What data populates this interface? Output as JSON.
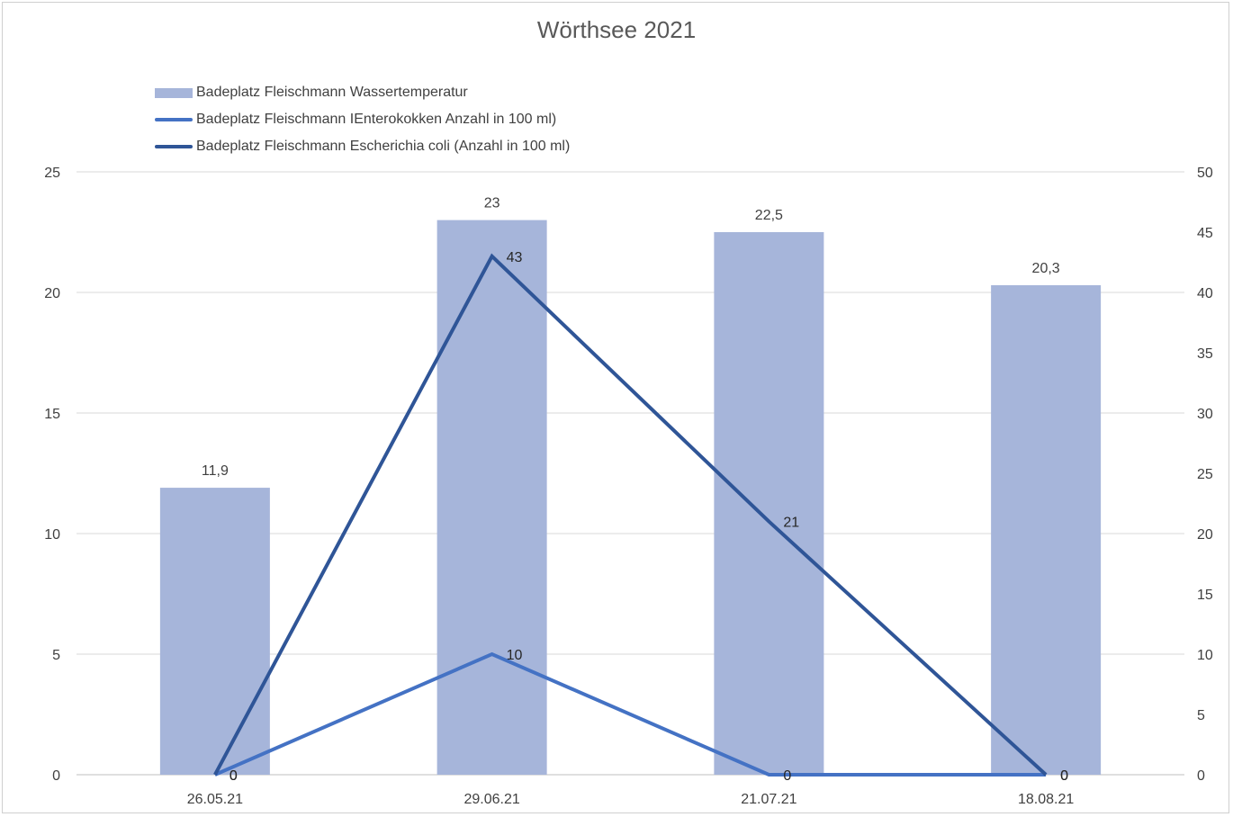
{
  "chart_data": {
    "type": "bar",
    "title": "Wörthsee 2021",
    "categories": [
      "26.05.21",
      "29.06.21",
      "21.07.21",
      "18.08.21"
    ],
    "series": [
      {
        "name": "Badeplatz Fleischmann Wassertemperatur",
        "kind": "bar",
        "axis": "left",
        "values": [
          11.9,
          23,
          22.5,
          20.3
        ],
        "labels": [
          "11,9",
          "23",
          "22,5",
          "20,3"
        ],
        "color": "#a6b5da"
      },
      {
        "name": "Badeplatz Fleischmann IEnterokokken Anzahl in 100 ml)",
        "kind": "line",
        "axis": "right",
        "values": [
          0,
          10,
          0,
          0
        ],
        "labels": [
          "0",
          "10",
          "0",
          "0"
        ],
        "color": "#4472c4"
      },
      {
        "name": "Badeplatz Fleischmann Escherichia coli  (Anzahl in 100 ml)",
        "kind": "line",
        "axis": "right",
        "values": [
          0,
          43,
          21,
          0
        ],
        "labels": [
          "0",
          "43",
          "21",
          "0"
        ],
        "color": "#2f5597"
      }
    ],
    "y_left": {
      "min": 0,
      "max": 25,
      "ticks": [
        "0",
        "5",
        "10",
        "15",
        "20",
        "25"
      ]
    },
    "y_right": {
      "min": 0,
      "max": 50,
      "ticks": [
        "0",
        "5",
        "10",
        "15",
        "20",
        "25",
        "30",
        "35",
        "40",
        "45",
        "50"
      ]
    },
    "xlabel": "",
    "ylabel": "",
    "grid": true,
    "legend_position": "top-left"
  }
}
